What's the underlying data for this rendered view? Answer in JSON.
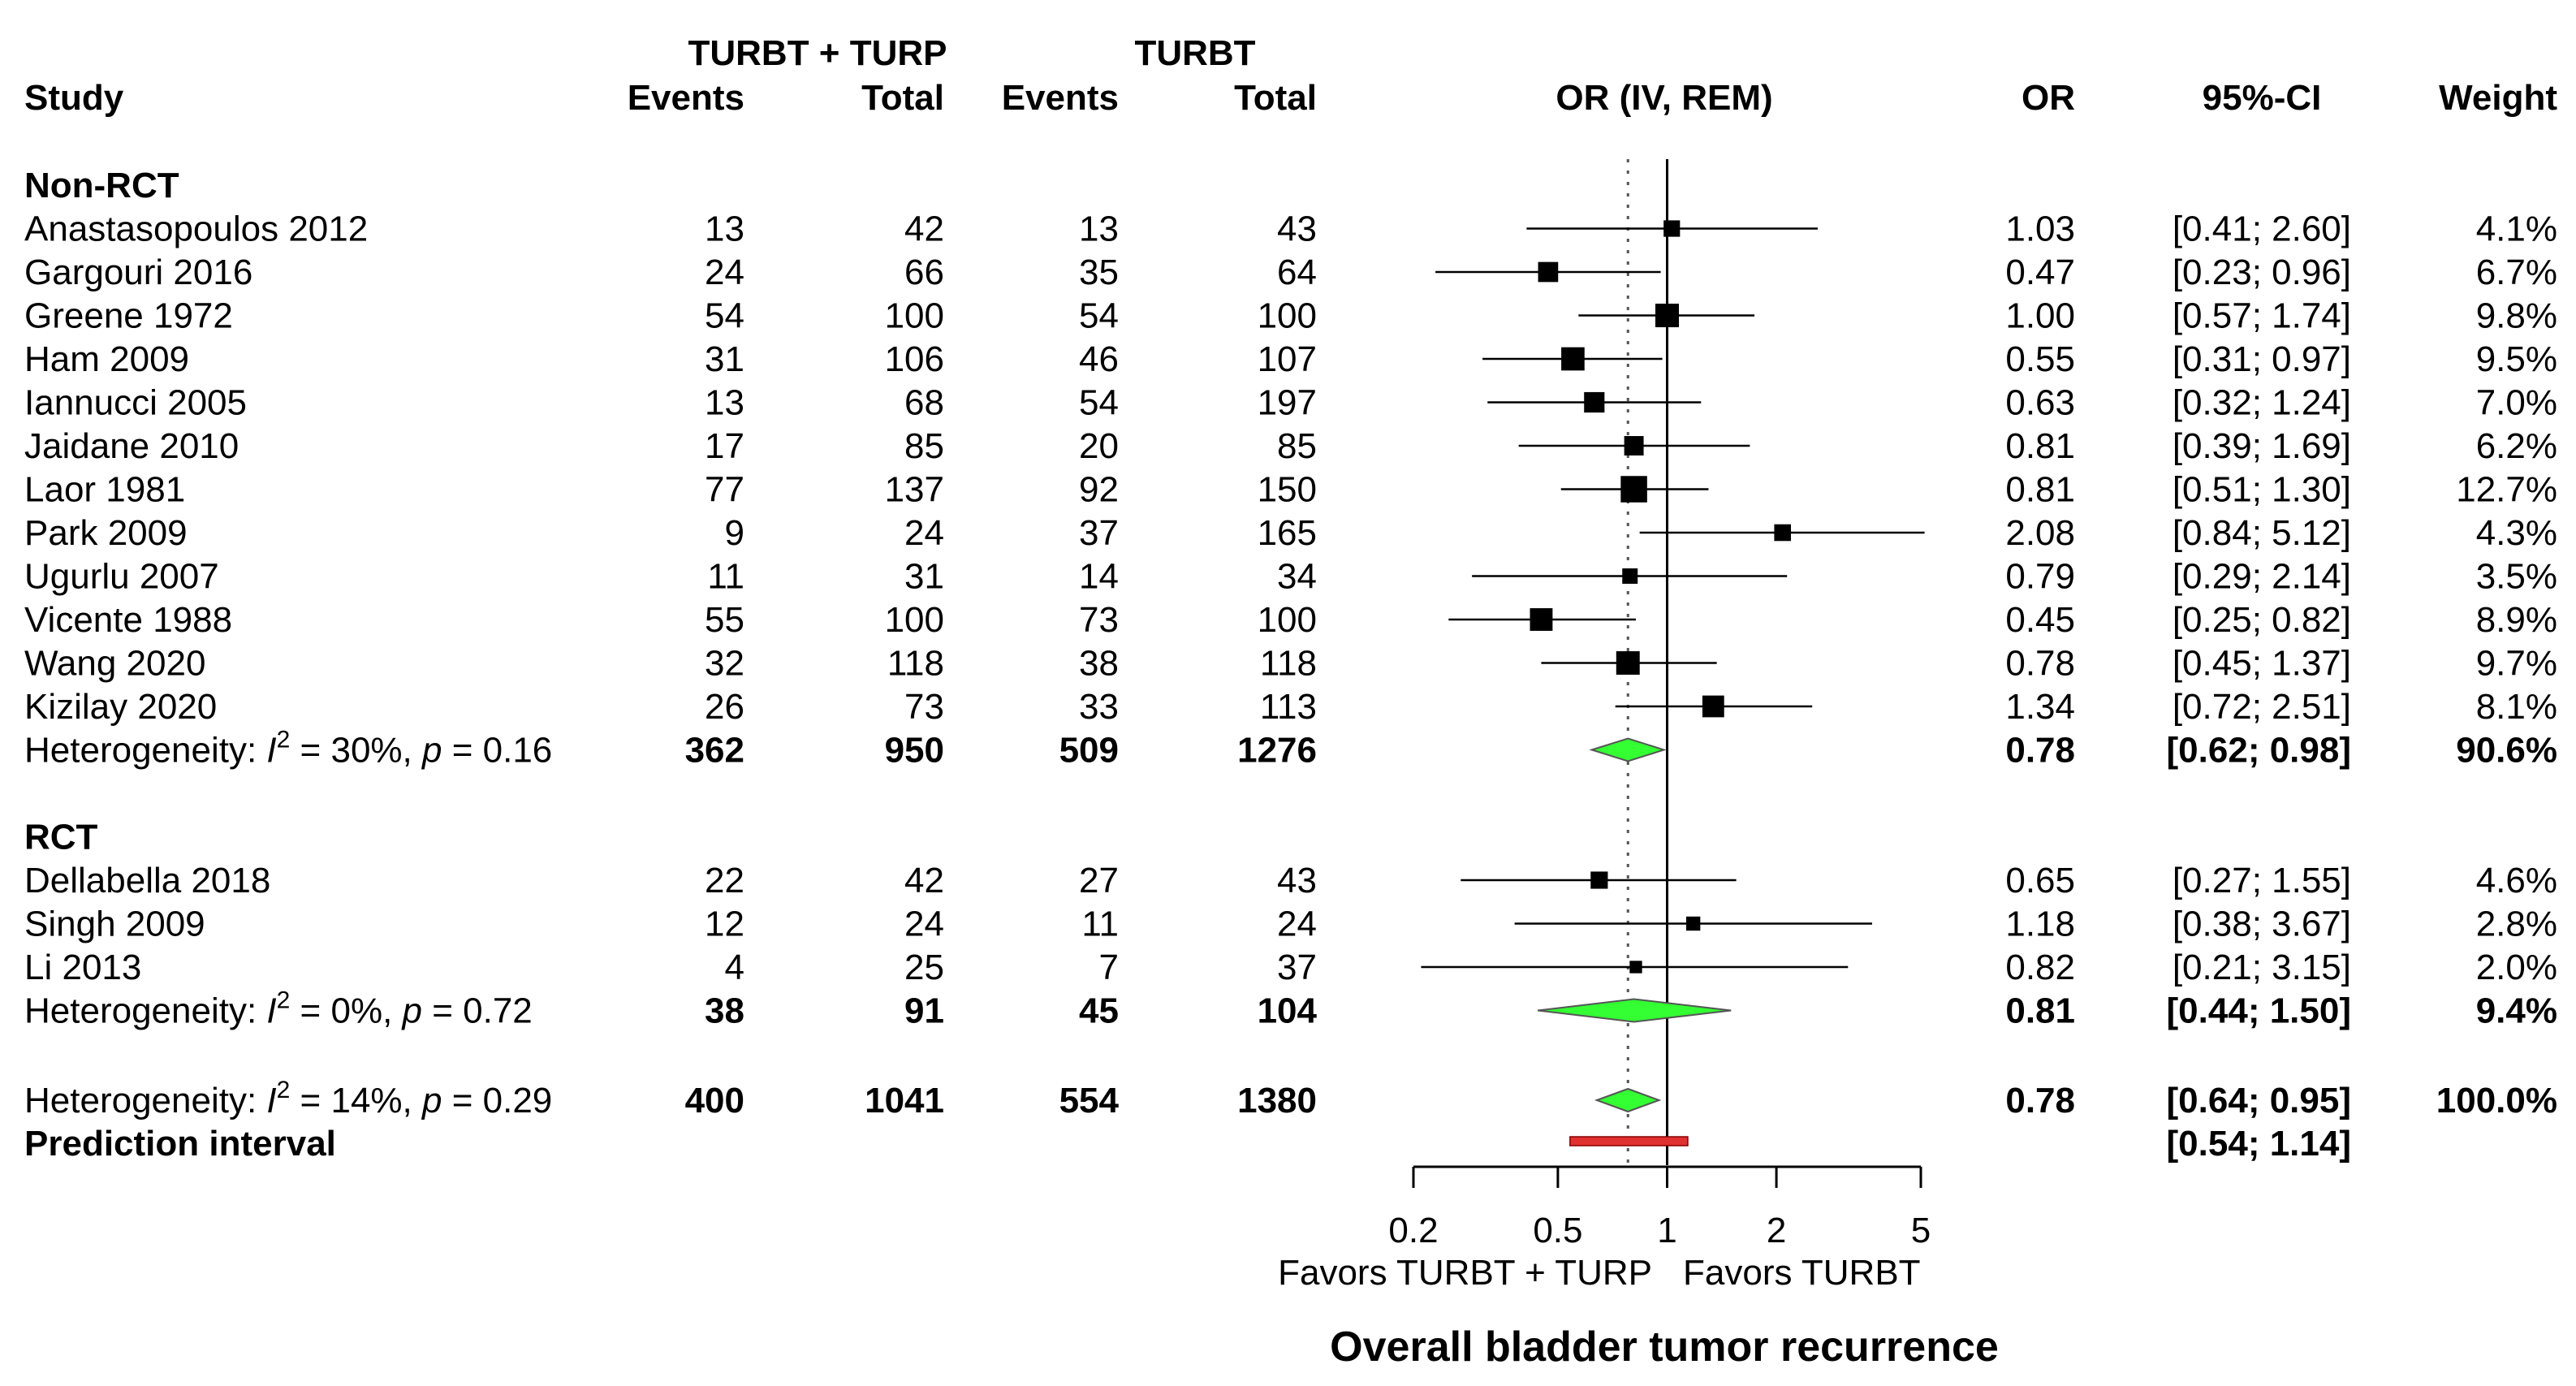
{
  "chart_data": {
    "type": "forest",
    "title": "Overall bladder tumor recurrence",
    "header": {
      "study": "Study",
      "group1": "TURBT + TURP",
      "group2": "TURBT",
      "events": "Events",
      "total": "Total",
      "plot": "OR (IV, REM)",
      "or": "OR",
      "ci": "95%-CI",
      "weight": "Weight"
    },
    "subgroups": [
      {
        "name": "Non-RCT",
        "studies": [
          {
            "study": "Anastasopoulos 2012",
            "e1": "13",
            "n1": "42",
            "e2": "13",
            "n2": "43",
            "or": 1.03,
            "lo": 0.41,
            "hi": 2.6,
            "or_text": "1.03",
            "ci_text": "[0.41; 2.60]",
            "weight": 4.1,
            "weight_text": "4.1%"
          },
          {
            "study": "Gargouri 2016",
            "e1": "24",
            "n1": "66",
            "e2": "35",
            "n2": "64",
            "or": 0.47,
            "lo": 0.23,
            "hi": 0.96,
            "or_text": "0.47",
            "ci_text": "[0.23; 0.96]",
            "weight": 6.7,
            "weight_text": "6.7%"
          },
          {
            "study": "Greene 1972",
            "e1": "54",
            "n1": "100",
            "e2": "54",
            "n2": "100",
            "or": 1.0,
            "lo": 0.57,
            "hi": 1.74,
            "or_text": "1.00",
            "ci_text": "[0.57; 1.74]",
            "weight": 9.8,
            "weight_text": "9.8%"
          },
          {
            "study": "Ham 2009",
            "e1": "31",
            "n1": "106",
            "e2": "46",
            "n2": "107",
            "or": 0.55,
            "lo": 0.31,
            "hi": 0.97,
            "or_text": "0.55",
            "ci_text": "[0.31; 0.97]",
            "weight": 9.5,
            "weight_text": "9.5%"
          },
          {
            "study": "Iannucci 2005",
            "e1": "13",
            "n1": "68",
            "e2": "54",
            "n2": "197",
            "or": 0.63,
            "lo": 0.32,
            "hi": 1.24,
            "or_text": "0.63",
            "ci_text": "[0.32; 1.24]",
            "weight": 7.0,
            "weight_text": "7.0%"
          },
          {
            "study": "Jaidane 2010",
            "e1": "17",
            "n1": "85",
            "e2": "20",
            "n2": "85",
            "or": 0.81,
            "lo": 0.39,
            "hi": 1.69,
            "or_text": "0.81",
            "ci_text": "[0.39; 1.69]",
            "weight": 6.2,
            "weight_text": "6.2%"
          },
          {
            "study": "Laor 1981",
            "e1": "77",
            "n1": "137",
            "e2": "92",
            "n2": "150",
            "or": 0.81,
            "lo": 0.51,
            "hi": 1.3,
            "or_text": "0.81",
            "ci_text": "[0.51; 1.30]",
            "weight": 12.7,
            "weight_text": "12.7%"
          },
          {
            "study": "Park 2009",
            "e1": "9",
            "n1": "24",
            "e2": "37",
            "n2": "165",
            "or": 2.08,
            "lo": 0.84,
            "hi": 5.12,
            "or_text": "2.08",
            "ci_text": "[0.84; 5.12]",
            "weight": 4.3,
            "weight_text": "4.3%"
          },
          {
            "study": "Ugurlu 2007",
            "e1": "11",
            "n1": "31",
            "e2": "14",
            "n2": "34",
            "or": 0.79,
            "lo": 0.29,
            "hi": 2.14,
            "or_text": "0.79",
            "ci_text": "[0.29; 2.14]",
            "weight": 3.5,
            "weight_text": "3.5%"
          },
          {
            "study": "Vicente 1988",
            "e1": "55",
            "n1": "100",
            "e2": "73",
            "n2": "100",
            "or": 0.45,
            "lo": 0.25,
            "hi": 0.82,
            "or_text": "0.45",
            "ci_text": "[0.25; 0.82]",
            "weight": 8.9,
            "weight_text": "8.9%"
          },
          {
            "study": "Wang 2020",
            "e1": "32",
            "n1": "118",
            "e2": "38",
            "n2": "118",
            "or": 0.78,
            "lo": 0.45,
            "hi": 1.37,
            "or_text": "0.78",
            "ci_text": "[0.45; 1.37]",
            "weight": 9.7,
            "weight_text": "9.7%"
          },
          {
            "study": "Kizilay 2020",
            "e1": "26",
            "n1": "73",
            "e2": "33",
            "n2": "113",
            "or": 1.34,
            "lo": 0.72,
            "hi": 2.51,
            "or_text": "1.34",
            "ci_text": "[0.72; 2.51]",
            "weight": 8.1,
            "weight_text": "8.1%"
          }
        ],
        "summary": {
          "het_prefix": "Heterogeneity: ",
          "i2_value": " = 30%, ",
          "p_value": " = 0.16",
          "e1": "362",
          "n1": "950",
          "e2": "509",
          "n2": "1276",
          "or": 0.78,
          "lo": 0.62,
          "hi": 0.98,
          "or_text": "0.78",
          "ci_text": "[0.62; 0.98]",
          "weight_text": "90.6%"
        }
      },
      {
        "name": "RCT",
        "studies": [
          {
            "study": "Dellabella 2018",
            "e1": "22",
            "n1": "42",
            "e2": "27",
            "n2": "43",
            "or": 0.65,
            "lo": 0.27,
            "hi": 1.55,
            "or_text": "0.65",
            "ci_text": "[0.27; 1.55]",
            "weight": 4.6,
            "weight_text": "4.6%"
          },
          {
            "study": "Singh 2009",
            "e1": "12",
            "n1": "24",
            "e2": "11",
            "n2": "24",
            "or": 1.18,
            "lo": 0.38,
            "hi": 3.67,
            "or_text": "1.18",
            "ci_text": "[0.38; 3.67]",
            "weight": 2.8,
            "weight_text": "2.8%"
          },
          {
            "study": "Li 2013",
            "e1": "4",
            "n1": "25",
            "e2": "7",
            "n2": "37",
            "or": 0.82,
            "lo": 0.21,
            "hi": 3.15,
            "or_text": "0.82",
            "ci_text": "[0.21; 3.15]",
            "weight": 2.0,
            "weight_text": "2.0%"
          }
        ],
        "summary": {
          "het_prefix": "Heterogeneity: ",
          "i2_value": " = 0%, ",
          "p_value": " = 0.72",
          "e1": "38",
          "n1": "91",
          "e2": "45",
          "n2": "104",
          "or": 0.81,
          "lo": 0.44,
          "hi": 1.5,
          "or_text": "0.81",
          "ci_text": "[0.44; 1.50]",
          "weight_text": "9.4%"
        }
      }
    ],
    "overall": {
      "het_prefix": "Heterogeneity: ",
      "i2_value": " = 14%, ",
      "p_value": " = 0.29",
      "e1": "400",
      "n1": "1041",
      "e2": "554",
      "n2": "1380",
      "or": 0.78,
      "lo": 0.64,
      "hi": 0.95,
      "or_text": "0.78",
      "ci_text": "[0.64; 0.95]",
      "weight_text": "100.0%"
    },
    "prediction": {
      "label": "Prediction interval",
      "lo": 0.54,
      "hi": 1.14,
      "ci_text": "[0.54; 1.14]"
    },
    "symbols": {
      "i": "I",
      "sup2": "2",
      "p": "p"
    },
    "x_axis": {
      "scale": "log",
      "ticks": [
        0.2,
        0.5,
        1,
        2,
        5
      ],
      "tick_labels": [
        "0.2",
        "0.5",
        "1",
        "2",
        "5"
      ],
      "null_value": 1,
      "left_label": "Favors TURBT + TURP",
      "right_label": "Favors TURBT"
    },
    "colors": {
      "diamond": "#33ff33",
      "prediction": "#e03030",
      "square": "#000000"
    }
  }
}
